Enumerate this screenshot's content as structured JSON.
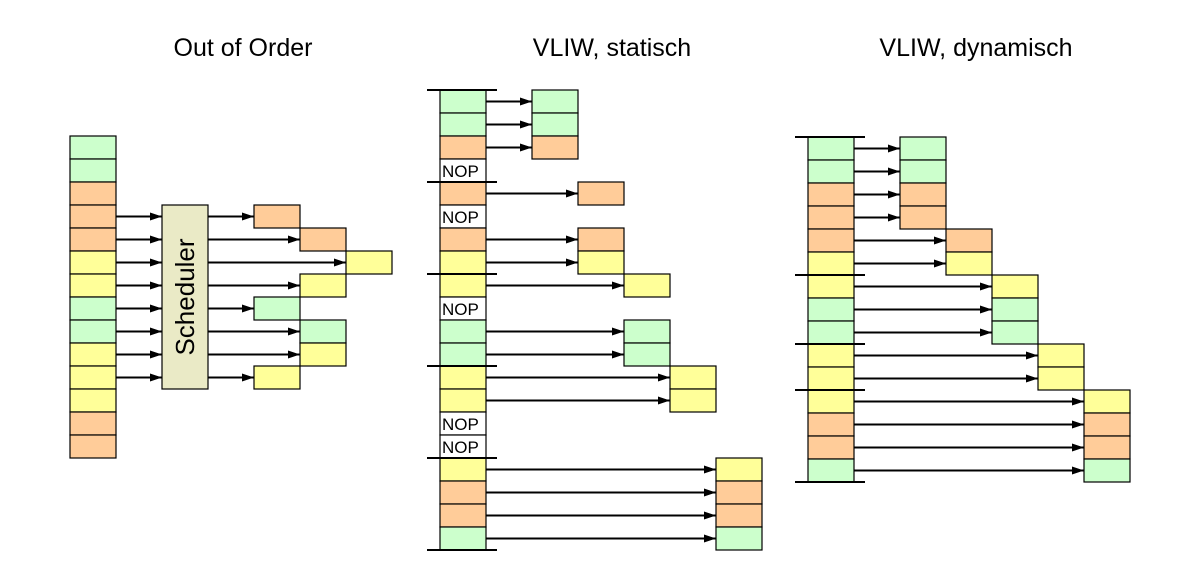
{
  "colors": {
    "G": "#ccffcc",
    "O": "#ffcc99",
    "Y": "#ffff99",
    "N": "#ffffff",
    "scheduler": "#eaeac6"
  },
  "panels": [
    {
      "title": "Out of Order",
      "scheduler_label": "Scheduler",
      "rows": [
        "G",
        "G",
        "O",
        "O",
        "O",
        "Y",
        "Y",
        "G",
        "G",
        "Y",
        "Y",
        "Y",
        "O",
        "O"
      ],
      "slots": [
        null,
        null,
        null,
        0,
        1,
        2,
        1,
        0,
        1,
        1,
        0,
        null,
        null,
        null
      ],
      "separators": []
    },
    {
      "title": "VLIW, statisch",
      "nop_label": "NOP",
      "rows": [
        "G",
        "G",
        "O",
        "N",
        "O",
        "N",
        "O",
        "Y",
        "Y",
        "N",
        "G",
        "G",
        "Y",
        "Y",
        "N",
        "N",
        "Y",
        "O",
        "O",
        "G"
      ],
      "slots": [
        0,
        0,
        0,
        null,
        1,
        null,
        1,
        1,
        2,
        null,
        2,
        2,
        3,
        3,
        null,
        null,
        4,
        4,
        4,
        4
      ],
      "separators": [
        0,
        4,
        8,
        12,
        16,
        20
      ]
    },
    {
      "title": "VLIW, dynamisch",
      "rows": [
        "G",
        "G",
        "O",
        "O",
        "O",
        "Y",
        "Y",
        "G",
        "G",
        "Y",
        "Y",
        "Y",
        "O",
        "O",
        "G"
      ],
      "slots": [
        0,
        0,
        0,
        0,
        1,
        1,
        2,
        2,
        2,
        3,
        3,
        4,
        4,
        4,
        4
      ],
      "separators": [
        0,
        6,
        9,
        11,
        15
      ]
    }
  ]
}
